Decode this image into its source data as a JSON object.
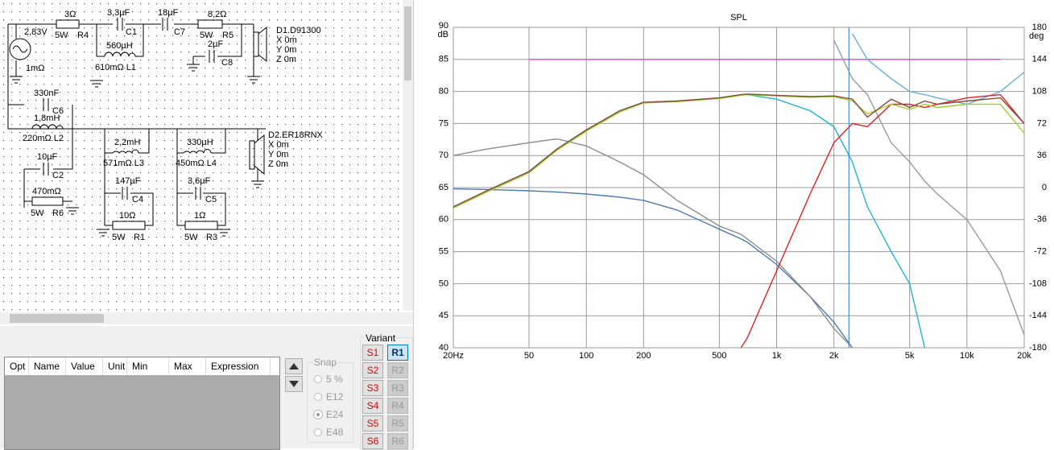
{
  "schematic": {
    "labels": [
      "3Ω",
      "3,3µF",
      "18µF",
      "8,2Ω",
      "2,83V",
      "5W",
      "R4",
      "C1",
      "C7",
      "5W",
      "R5",
      "D1.D91300",
      "X 0m",
      "Y 0m",
      "Z 0m",
      "560µH",
      "610mΩ L1",
      "2µF",
      "C8",
      "1mΩ",
      "330nF",
      "C6",
      "1,8mH",
      "220mΩ L2",
      "10µF",
      "C2",
      "470mΩ",
      "5W",
      "R6",
      "D2.ER18RNX",
      "X 0m",
      "Y 0m",
      "Z 0m",
      "2,2mH",
      "571mΩ L3",
      "330µH",
      "450mΩ L4",
      "147µF",
      "C4",
      "3,6µF",
      "C5",
      "10Ω",
      "1Ω",
      "5W",
      "R1",
      "5W",
      "R3"
    ]
  },
  "table": {
    "headers": [
      "Opt",
      "Name",
      "Value",
      "Unit",
      "Min",
      "Max",
      "Expression"
    ]
  },
  "snap": {
    "title": "Snap",
    "options": [
      "5 %",
      "E12",
      "E24",
      "E48"
    ]
  },
  "variant": {
    "title": "Variant",
    "s_buttons": [
      "S1",
      "S2",
      "S3",
      "S4",
      "S5",
      "S6"
    ],
    "r_buttons": [
      "R1",
      "R2",
      "R3",
      "R4",
      "R5",
      "R6"
    ]
  },
  "chart_data": {
    "type": "line",
    "title": "SPL",
    "ylabel": "dB",
    "y2label": "deg",
    "log_x": true,
    "grid": true,
    "x": [
      20,
      30,
      50,
      70,
      100,
      150,
      200,
      300,
      500,
      650,
      700,
      1000,
      1500,
      2000,
      2500,
      3000,
      4000,
      5000,
      6000,
      7000,
      10000,
      15000,
      20000
    ],
    "xlim": [
      20,
      20000
    ],
    "xticks": [
      {
        "value": 20,
        "label": "20Hz"
      },
      50,
      100,
      200,
      500,
      {
        "value": 1000,
        "label": "1k"
      },
      {
        "value": 2000,
        "label": "2k"
      },
      {
        "value": 5000,
        "label": "5k"
      },
      {
        "value": 10000,
        "label": "10k"
      },
      {
        "value": 20000,
        "label": "20k"
      }
    ],
    "ylim": [
      40,
      90
    ],
    "yticks": [
      40,
      45,
      50,
      55,
      60,
      65,
      70,
      75,
      80,
      85,
      90
    ],
    "y2lim": [
      -180,
      180
    ],
    "y2ticks": [
      -180,
      -144,
      -108,
      -72,
      -36,
      0,
      36,
      72,
      108,
      144,
      180
    ],
    "cursor_x": 2400,
    "cursor_color": "#4a90d0",
    "series": [
      {
        "color": "#9fcf2f",
        "values": [
          61.8,
          64.3,
          67.3,
          70.8,
          73.8,
          76.8,
          78.2,
          78.4,
          78.9,
          79.4,
          79.5,
          79.3,
          79.1,
          79.2,
          78.5,
          76.5,
          78,
          77.2,
          78,
          77.5,
          78,
          78,
          73.5
        ]
      },
      {
        "color": "#8a4a3a",
        "values": [
          62,
          64.5,
          67.5,
          71,
          74,
          77,
          78.3,
          78.5,
          79,
          79.5,
          79.6,
          79.4,
          79.2,
          79.3,
          78.8,
          76,
          78.8,
          77.5,
          78.5,
          78,
          78.5,
          79,
          75
        ]
      },
      {
        "color": "#1eb4d8",
        "values": [
          62,
          64.5,
          67.5,
          71,
          74,
          77,
          78.3,
          78.5,
          79,
          79.5,
          79.5,
          78.8,
          77,
          74.5,
          69,
          62,
          55,
          50,
          40,
          null,
          null,
          null,
          null
        ]
      },
      {
        "color": "#e02020",
        "values": [
          null,
          null,
          null,
          null,
          null,
          null,
          null,
          null,
          null,
          40,
          41.5,
          52,
          64,
          72,
          75,
          74.5,
          78,
          78,
          77.5,
          78,
          79,
          79.5,
          75
        ]
      },
      {
        "color": "#8c8c8c",
        "values": [
          70,
          71,
          72,
          72.6,
          71.5,
          69,
          67,
          63,
          59,
          57.7,
          57,
          53.5,
          48,
          43,
          40,
          null,
          null,
          null,
          null,
          null,
          null,
          null,
          null
        ]
      },
      {
        "color": "#4a7ab0",
        "values": [
          64.8,
          64.7,
          64.5,
          64.3,
          64,
          63.5,
          63,
          61.5,
          58.5,
          57,
          56.5,
          53,
          48,
          44,
          40,
          null,
          null,
          null,
          null,
          null,
          null,
          null,
          null
        ]
      },
      {
        "color": "#9a9a9a",
        "values": [
          null,
          null,
          null,
          null,
          null,
          null,
          null,
          null,
          null,
          null,
          null,
          null,
          null,
          88,
          82,
          79.5,
          72,
          69,
          66,
          64,
          60,
          52,
          42
        ]
      },
      {
        "color": "#6aaed6",
        "values": [
          null,
          null,
          null,
          null,
          null,
          null,
          null,
          null,
          null,
          null,
          null,
          null,
          null,
          null,
          89,
          85,
          82,
          80,
          79.5,
          79,
          78,
          80,
          83
        ]
      },
      {
        "color": "#e040e0",
        "values": [
          null,
          null,
          85,
          85,
          85,
          85,
          85,
          85,
          85,
          85,
          85,
          85,
          85,
          85,
          85,
          85,
          85,
          85,
          85,
          85,
          85,
          85,
          null
        ]
      }
    ]
  }
}
